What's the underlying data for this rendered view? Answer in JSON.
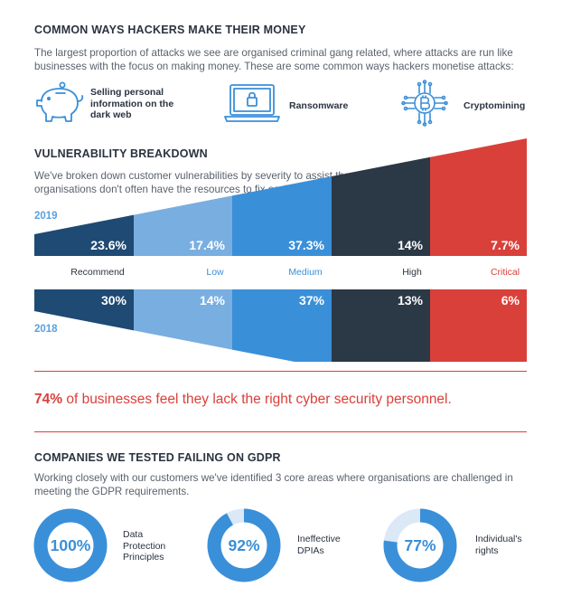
{
  "section1": {
    "title": "COMMON WAYS HACKERS MAKE THEIR MONEY",
    "intro": "The largest proportion of attacks we see are organised criminal gang related, where attacks are run like businesses with the focus on making money. These are some common ways hackers monetise attacks:",
    "methods": [
      {
        "icon": "piggy-bank-icon",
        "label": "Selling personal information on the dark web"
      },
      {
        "icon": "laptop-lock-icon",
        "label": "Ransomware"
      },
      {
        "icon": "bitcoin-chip-icon",
        "label": "Cryptomining"
      }
    ]
  },
  "section2": {
    "title": "VULNERABILITY BREAKDOWN",
    "intro": "We've broken down customer vulnerabilities by severity to assist them in prioritising remediation as organisations don't often have the resources to fix each issue immediately."
  },
  "stat": {
    "highlight": "74%",
    "text": " of businesses feel they lack the right cyber security personnel."
  },
  "section3": {
    "title": "COMPANIES WE TESTED FAILING ON GDPR",
    "intro": "Working closely with our customers we've identified 3 core areas where organisations are challenged in meeting the GDPR requirements."
  },
  "colors": {
    "recommend": "#1e4a73",
    "low": "#79aee0",
    "medium": "#3a8fd9",
    "high": "#2b3845",
    "critical": "#d9403a",
    "donut_track": "#dbe8f6",
    "donut_fill": "#3a8fd9",
    "label_blue": "#3a8fd9"
  },
  "chart_data": [
    {
      "type": "bar",
      "title": "VULNERABILITY BREAKDOWN",
      "categories": [
        "Recommend",
        "Low",
        "Medium",
        "High",
        "Critical"
      ],
      "series": [
        {
          "name": "2019",
          "values": [
            23.6,
            17.4,
            37.3,
            14,
            7.7
          ],
          "labels": [
            "23.6%",
            "17.4%",
            "37.3%",
            "14%",
            "7.7%"
          ]
        },
        {
          "name": "2018",
          "values": [
            30,
            14,
            37,
            13,
            6
          ],
          "labels": [
            "30%",
            "14%",
            "37%",
            "13%",
            "6%"
          ]
        }
      ],
      "unit": "%"
    },
    {
      "type": "pie",
      "title": "COMPANIES WE TESTED FAILING ON GDPR",
      "items": [
        {
          "value": 100,
          "pct_label": "100%",
          "label": "Data Protection Principles"
        },
        {
          "value": 92,
          "pct_label": "92%",
          "label": "Ineffective DPIAs"
        },
        {
          "value": 77,
          "pct_label": "77%",
          "label": "Individual's rights"
        }
      ]
    }
  ]
}
